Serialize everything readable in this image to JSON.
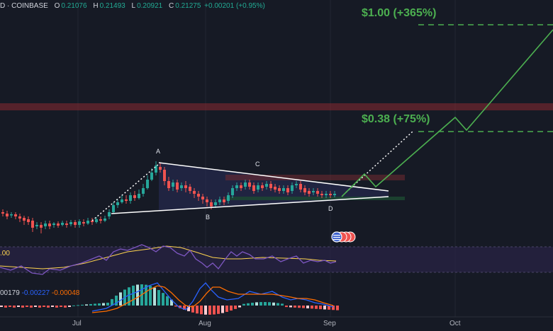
{
  "symbol_header": {
    "symbol_tail": "D",
    "exchange": "COINBASE",
    "open_label": "O",
    "open": "0.21076",
    "high_label": "H",
    "high": "0.21493",
    "low_label": "L",
    "low": "0.20921",
    "close_label": "C",
    "close": "0.21275",
    "change": "+0.00201 (+0.95%)"
  },
  "targets": {
    "t1": "$1.00 (+365%)",
    "t2": "$0.38 (+75%)"
  },
  "pattern_points": {
    "a": "A",
    "b": "B",
    "c": "C",
    "d": "D"
  },
  "rsi_label": ".00",
  "macd_labels": {
    "v1": "00179",
    "v2": "-0.00227",
    "v3": "-0.00048"
  },
  "x_axis": [
    "Jul",
    "Aug",
    "Sep",
    "Oct"
  ],
  "colors": {
    "bull": "#26a69a",
    "bear": "#ef5350",
    "target_green": "#4caf50",
    "rsi": "#7e57c2",
    "rsi_ma": "#ffd54f",
    "macd": "#2962ff",
    "signal": "#ff6d00"
  },
  "icons": [
    "us-flag-icon",
    "event-marker-icon"
  ]
}
